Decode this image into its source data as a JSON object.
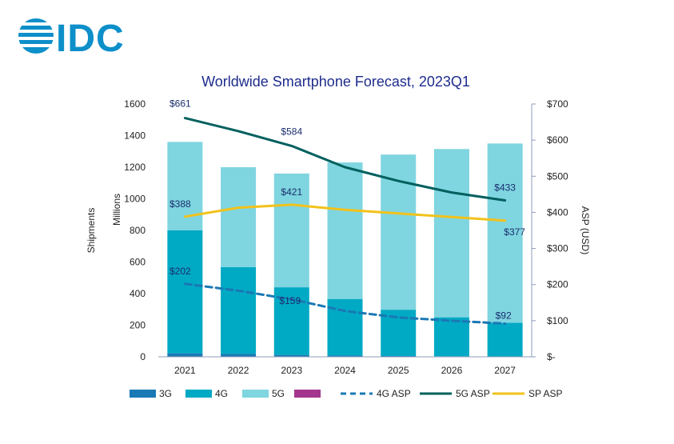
{
  "logo": {
    "text": "IDC",
    "color": "#0d8fc9"
  },
  "chart_data": {
    "type": "bar",
    "title": "Worldwide Smartphone Forecast, 2023Q1",
    "stacked": true,
    "categories": [
      "2021",
      "2022",
      "2023",
      "2024",
      "2025",
      "2026",
      "2027"
    ],
    "y_left": {
      "label": "Shipments",
      "sublabel": "Millions",
      "range": [
        0,
        1600
      ],
      "ticks": [
        "0",
        "200",
        "400",
        "600",
        "800",
        "1000",
        "1200",
        "1400",
        "1600"
      ]
    },
    "y_right": {
      "label": "ASP (USD)",
      "range": [
        0,
        700
      ],
      "ticks": [
        "$-",
        "$100",
        "$200",
        "$300",
        "$400",
        "$500",
        "$600",
        "$700"
      ]
    },
    "series": [
      {
        "name": "3G",
        "kind": "bar",
        "axis": "left",
        "color": "#1a78b4",
        "values": [
          22,
          18,
          12,
          8,
          5,
          3,
          2
        ]
      },
      {
        "name": "4G",
        "kind": "bar",
        "axis": "left",
        "color": "#00a9c4",
        "values": [
          778,
          550,
          428,
          358,
          293,
          247,
          213
        ]
      },
      {
        "name": "5G",
        "kind": "bar",
        "axis": "left",
        "color": "#7fd5e0",
        "values": [
          560,
          632,
          720,
          864,
          982,
          1065,
          1135
        ]
      },
      {
        "name": "",
        "kind": "bar",
        "axis": "left",
        "color": "#a3358e",
        "values": [
          0,
          0,
          0,
          0,
          0,
          0,
          0
        ]
      },
      {
        "name": "4G ASP",
        "kind": "line",
        "axis": "right",
        "color": "#1a78b4",
        "dashed": true,
        "values": [
          202,
          183,
          159,
          127,
          109,
          100,
          92
        ]
      },
      {
        "name": "5G ASP",
        "kind": "line",
        "axis": "right",
        "color": "#00605e",
        "dashed": false,
        "values": [
          661,
          625,
          584,
          525,
          487,
          455,
          433
        ]
      },
      {
        "name": "SP ASP",
        "kind": "line",
        "axis": "right",
        "color": "#f2c21b",
        "dashed": false,
        "values": [
          388,
          413,
          421,
          407,
          397,
          387,
          377
        ]
      }
    ],
    "annotations": [
      {
        "text": "$661",
        "category": "2021",
        "value": 661
      },
      {
        "text": "$584",
        "category": "2023",
        "value": 584
      },
      {
        "text": "$433",
        "category": "2027",
        "value": 433
      },
      {
        "text": "$388",
        "category": "2021",
        "value": 388
      },
      {
        "text": "$421",
        "category": "2023",
        "value": 421
      },
      {
        "text": "$377",
        "category": "2027",
        "value": 377
      },
      {
        "text": "$202",
        "category": "2021",
        "value": 202
      },
      {
        "text": "$159",
        "category": "2023",
        "value": 159
      },
      {
        "text": "$92",
        "category": "2027",
        "value": 92
      }
    ],
    "legend_position": "bottom",
    "grid": false
  }
}
